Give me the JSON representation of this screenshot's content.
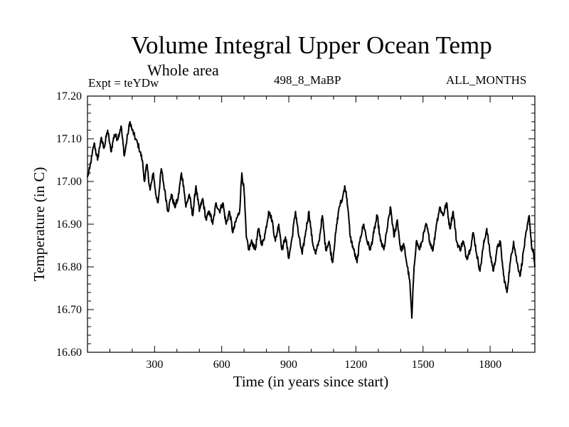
{
  "chart_data": {
    "type": "line",
    "title": "Volume Integral Upper Ocean Temp",
    "subtitle": "Whole area",
    "experiment": "Expt = teYDw",
    "run_label": "498_8_MaBP",
    "months_label": "ALL_MONTHS",
    "xlabel": "Time (in years since start)",
    "ylabel": "Temperature (in C)",
    "xlim": [
      0,
      2000
    ],
    "ylim": [
      16.6,
      17.2
    ],
    "x_ticks": [
      300,
      600,
      900,
      1200,
      1500,
      1800
    ],
    "x_tick_labels": [
      "300",
      "600",
      "900",
      "1200",
      "1500",
      "1800"
    ],
    "y_ticks": [
      16.6,
      16.7,
      16.8,
      16.9,
      17.0,
      17.1,
      17.2
    ],
    "y_tick_labels": [
      "16.60",
      "16.70",
      "16.80",
      "16.90",
      "17.00",
      "17.10",
      "17.20"
    ],
    "grid": false,
    "series": [
      {
        "name": "Volume Integral Upper Ocean Temp",
        "x": [
          0,
          10,
          20,
          30,
          45,
          60,
          75,
          90,
          105,
          120,
          135,
          150,
          165,
          180,
          190,
          200,
          215,
          230,
          245,
          255,
          265,
          280,
          295,
          305,
          315,
          330,
          345,
          360,
          375,
          390,
          405,
          420,
          430,
          440,
          455,
          470,
          485,
          500,
          515,
          530,
          545,
          560,
          575,
          590,
          605,
          620,
          635,
          650,
          665,
          680,
          690,
          700,
          710,
          720,
          735,
          750,
          765,
          780,
          795,
          810,
          825,
          840,
          855,
          870,
          885,
          900,
          915,
          930,
          945,
          960,
          975,
          990,
          1005,
          1020,
          1035,
          1050,
          1065,
          1080,
          1095,
          1110,
          1125,
          1140,
          1150,
          1160,
          1175,
          1190,
          1205,
          1220,
          1235,
          1250,
          1265,
          1280,
          1295,
          1310,
          1325,
          1340,
          1355,
          1370,
          1385,
          1400,
          1415,
          1430,
          1440,
          1450,
          1460,
          1470,
          1485,
          1500,
          1515,
          1530,
          1545,
          1560,
          1575,
          1590,
          1605,
          1620,
          1635,
          1650,
          1665,
          1680,
          1695,
          1710,
          1725,
          1740,
          1755,
          1770,
          1785,
          1800,
          1815,
          1830,
          1845,
          1860,
          1875,
          1890,
          1905,
          1920,
          1935,
          1950,
          1965,
          1975,
          1985,
          1995,
          2000
        ],
        "values": [
          17.01,
          17.03,
          17.06,
          17.09,
          17.05,
          17.1,
          17.08,
          17.12,
          17.07,
          17.11,
          17.1,
          17.13,
          17.06,
          17.11,
          17.14,
          17.12,
          17.1,
          17.08,
          17.05,
          17.0,
          17.04,
          16.98,
          17.02,
          16.97,
          16.95,
          17.03,
          16.98,
          16.93,
          16.97,
          16.94,
          16.96,
          17.02,
          16.99,
          16.94,
          16.97,
          16.92,
          16.99,
          16.93,
          16.96,
          16.91,
          16.93,
          16.9,
          16.95,
          16.93,
          16.95,
          16.9,
          16.93,
          16.88,
          16.91,
          16.93,
          17.02,
          16.98,
          16.87,
          16.84,
          16.86,
          16.84,
          16.89,
          16.85,
          16.88,
          16.93,
          16.91,
          16.86,
          16.9,
          16.84,
          16.87,
          16.82,
          16.87,
          16.93,
          16.87,
          16.83,
          16.88,
          16.93,
          16.86,
          16.83,
          16.86,
          16.92,
          16.84,
          16.86,
          16.81,
          16.88,
          16.94,
          16.96,
          16.99,
          16.96,
          16.87,
          16.84,
          16.81,
          16.87,
          16.9,
          16.86,
          16.84,
          16.88,
          16.92,
          16.86,
          16.84,
          16.89,
          16.94,
          16.87,
          16.91,
          16.84,
          16.85,
          16.8,
          16.77,
          16.68,
          16.8,
          16.86,
          16.84,
          16.87,
          16.9,
          16.86,
          16.84,
          16.9,
          16.94,
          16.92,
          16.95,
          16.89,
          16.93,
          16.86,
          16.84,
          16.86,
          16.82,
          16.84,
          16.88,
          16.83,
          16.79,
          16.85,
          16.89,
          16.83,
          16.79,
          16.84,
          16.86,
          16.78,
          16.74,
          16.81,
          16.86,
          16.81,
          16.78,
          16.84,
          16.89,
          16.92,
          16.85,
          16.83,
          16.8
        ]
      }
    ]
  }
}
